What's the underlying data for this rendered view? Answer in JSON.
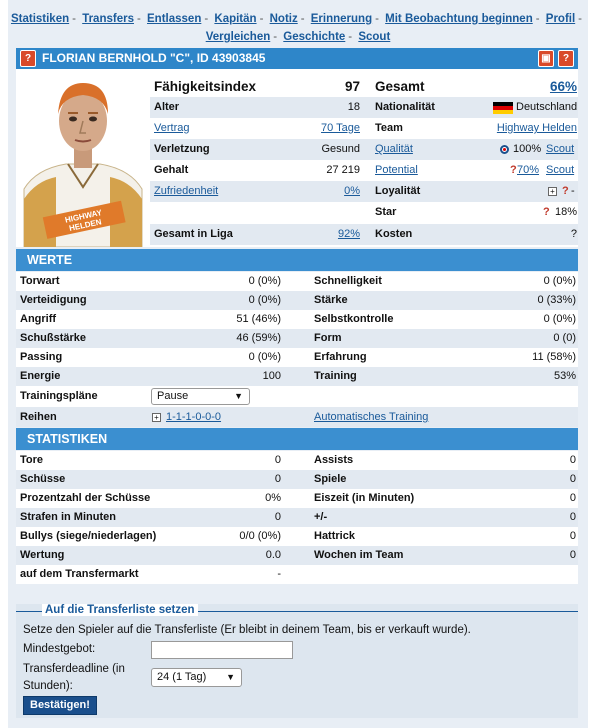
{
  "nav": {
    "items": [
      "Statistiken",
      "Transfers",
      "Entlassen",
      "Kapitän",
      "Notiz",
      "Erinnerung",
      "Mit Beobachtung beginnen",
      "Profil",
      "Vergleichen",
      "Geschichte",
      "Scout"
    ]
  },
  "title": "FLORIAN BERNHOLD \"C\", ID 43903845",
  "player": {
    "skill_index_label": "Fähigkeitsindex",
    "skill_index": "97",
    "overall_label": "Gesamt",
    "overall": "66%",
    "age_label": "Alter",
    "age": "18",
    "nationality_label": "Nationalität",
    "nationality": "Deutschland",
    "contract_label": "Vertrag",
    "contract": "70 Tage",
    "team_label": "Team",
    "team": "Highway Helden",
    "injury_label": "Verletzung",
    "injury": "Gesund",
    "quality_label": "Qualität",
    "quality": "100%",
    "quality_scout": "Scout",
    "salary_label": "Gehalt",
    "salary": "27 219",
    "potential_label": "Potential",
    "potential": "70%",
    "potential_scout": "Scout",
    "satisfaction_label": "Zufriedenheit",
    "satisfaction": "0%",
    "loyalty_label": "Loyalität",
    "loyalty": "-",
    "star_label": "Star",
    "star": "18%",
    "league_overall_label": "Gesamt in Liga",
    "league_overall": "92%",
    "costs_label": "Kosten",
    "costs": "?"
  },
  "values_section": "WERTE",
  "values": [
    {
      "l1": "Torwart",
      "v1": "0 (0%)",
      "l2": "Schnelligkeit",
      "v2": "0 (0%)"
    },
    {
      "l1": "Verteidigung",
      "v1": "0 (0%)",
      "l2": "Stärke",
      "v2": "0 (33%)"
    },
    {
      "l1": "Angriff",
      "v1": "51 (46%)",
      "l2": "Selbstkontrolle",
      "v2": "0 (0%)"
    },
    {
      "l1": "Schußstärke",
      "v1": "46 (59%)",
      "l2": "Form",
      "v2": "0 (0)"
    },
    {
      "l1": "Passing",
      "v1": "0 (0%)",
      "l2": "Erfahrung",
      "v2": "11 (58%)"
    },
    {
      "l1": "Energie",
      "v1": "100",
      "l2": "Training",
      "v2": "53%"
    }
  ],
  "training_label": "Trainingspläne",
  "training_select": "Pause",
  "lines_label": "Reihen",
  "lines_value": "1-1-1-0-0-0",
  "auto_training": "Automatisches Training",
  "stats_section": "STATISTIKEN",
  "stats": [
    {
      "l1": "Tore",
      "v1": "0",
      "l2": "Assists",
      "v2": "0"
    },
    {
      "l1": "Schüsse",
      "v1": "0",
      "l2": "Spiele",
      "v2": "0"
    },
    {
      "l1": "Prozentzahl der Schüsse",
      "v1": "0%",
      "l2": "Eiszeit (in Minuten)",
      "v2": "0"
    },
    {
      "l1": "Strafen in Minuten",
      "v1": "0",
      "l2": "+/-",
      "v2": "0"
    },
    {
      "l1": "Bullys (siege/niederlagen)",
      "v1": "0/0 (0%)",
      "l2": "Hattrick",
      "v2": "0"
    },
    {
      "l1": "Wertung",
      "v1": "0.0",
      "l2": "Wochen im Team",
      "v2": "0"
    },
    {
      "l1": "auf dem Transfermarkt",
      "v1": "-",
      "l2": "",
      "v2": ""
    }
  ],
  "transfer": {
    "legend": "Auf die Transferliste setzen",
    "description": "Setze den Spieler auf die Transferliste (Er bleibt in deinem Team, bis er verkauft wurde).",
    "min_bid_label": "Mindestgebot:",
    "min_bid_value": "",
    "deadline_label_1": "Transferdeadline (in",
    "deadline_label_2": "Stunden):",
    "deadline_select": "24 (1 Tag)",
    "confirm": "Bestätigen!"
  },
  "colors": {
    "accent": "#2e86c9",
    "section": "#3b8fd0",
    "link": "#1a5a9a",
    "alert": "#d94a2a"
  }
}
